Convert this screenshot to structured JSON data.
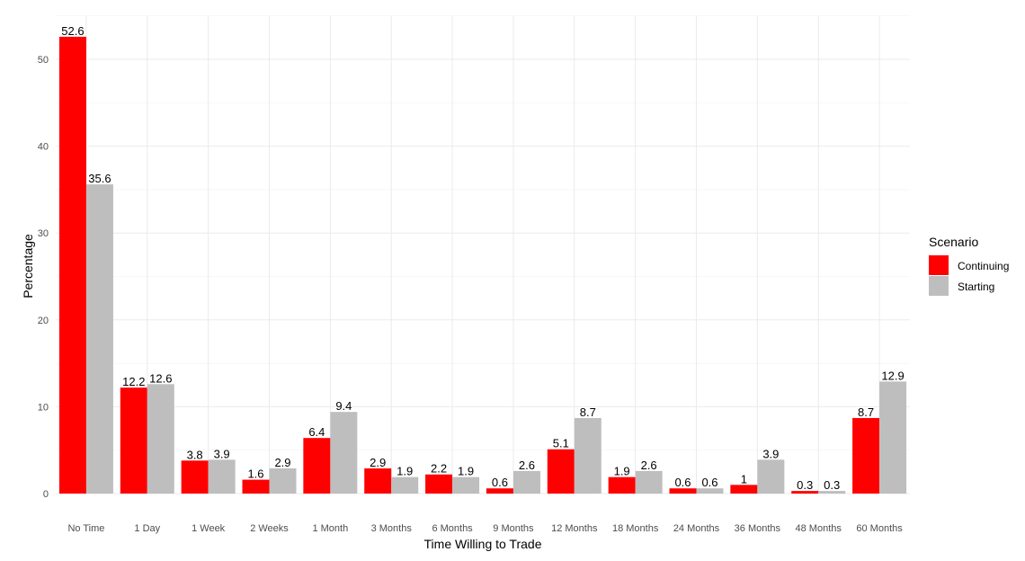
{
  "chart_data": {
    "type": "bar",
    "title": "",
    "xlabel": "Time Willing to Trade",
    "ylabel": "Percentage",
    "ylim": [
      0,
      55
    ],
    "yticks": [
      0,
      10,
      20,
      30,
      40,
      50
    ],
    "grid": true,
    "legend": {
      "title": "Scenario",
      "placement": "right"
    },
    "categories": [
      "No Time",
      "1 Day",
      "1 Week",
      "2 Weeks",
      "1 Month",
      "3 Months",
      "6 Months",
      "9 Months",
      "12 Months",
      "18 Months",
      "24 Months",
      "36 Months",
      "48 Months",
      "60 Months"
    ],
    "series": [
      {
        "name": "Continuing",
        "color": "#ff0000",
        "values": [
          52.6,
          12.2,
          3.8,
          1.6,
          6.4,
          2.9,
          2.2,
          0.6,
          5.1,
          1.9,
          0.6,
          1,
          0.3,
          8.7
        ],
        "labels": [
          "52.6",
          "12.2",
          "3.8",
          "1.6",
          "6.4",
          "2.9",
          "2.2",
          "0.6",
          "5.1",
          "1.9",
          "0.6",
          "1",
          "0.3",
          "8.7"
        ]
      },
      {
        "name": "Starting",
        "color": "#bebebe",
        "values": [
          35.6,
          12.6,
          3.9,
          2.9,
          9.4,
          1.9,
          1.9,
          2.6,
          8.7,
          2.6,
          0.6,
          3.9,
          0.3,
          12.9
        ],
        "labels": [
          "35.6",
          "12.6",
          "3.9",
          "2.9",
          "9.4",
          "1.9",
          "1.9",
          "2.6",
          "8.7",
          "2.6",
          "0.6",
          "3.9",
          "0.3",
          "12.9"
        ]
      }
    ]
  }
}
